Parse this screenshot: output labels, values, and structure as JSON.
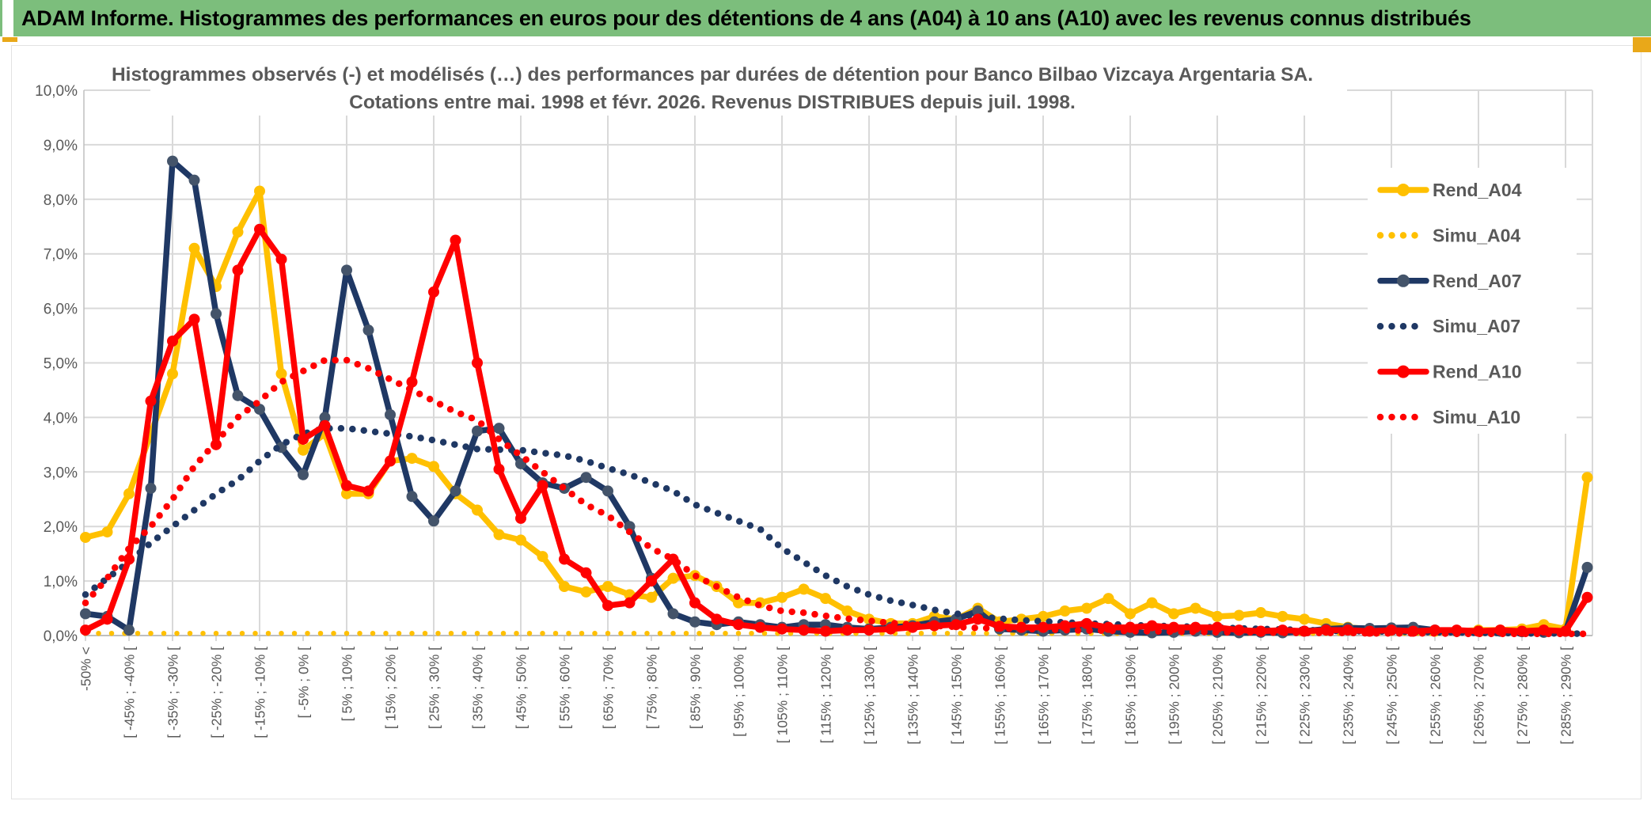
{
  "banner": {
    "title": "ADAM Informe. Histogrammes des performances en euros pour des détentions de 4 ans (A04) à 10 ans (A10) avec les revenus connus distribués",
    "bg_color": "#7CBE7C",
    "accent_color": "#E9A819"
  },
  "chart_data": {
    "type": "line",
    "title": "Histogrammes observés (-) et modélisés (…) des performances par durées de détention pour Banco Bilbao Vizcaya Argentaria SA.",
    "subtitle": "Cotations entre mai. 1998 et févr. 2026. Revenus DISTRIBUES depuis juil. 1998.",
    "ylim": [
      0,
      10
    ],
    "grid": true,
    "legend_position": "right",
    "text_color": "#595959",
    "grid_color": "#D9D9D9",
    "axis_color": "#BFBFBF",
    "y_tick_labels": [
      "0,0%",
      "1,0%",
      "2,0%",
      "3,0%",
      "4,0%",
      "5,0%",
      "6,0%",
      "7,0%",
      "8,0%",
      "9,0%",
      "10,0%"
    ],
    "x_tick_labels": [
      "-50% <",
      "[ -45% ; -40% [",
      "[ -35% ; -30% [",
      "[ -25% ; -20% [",
      "[ -15% ; -10% [",
      "[ -5% ; 0% [",
      "[ 5% ; 10% [",
      "[ 15% ; 20% [",
      "[ 25% ; 30% [",
      "[ 35% ; 40% [",
      "[ 45% ; 50% [",
      "[ 55% ; 60% [",
      "[ 65% ; 70% [",
      "[ 75% ; 80% [",
      "[ 85% ; 90% [",
      "[ 95% ; 100% [",
      "[ 105% ; 110% [",
      "[ 115% ; 120% [",
      "[ 125% ; 130% [",
      "[ 135% ; 140% [",
      "[ 145% ; 150% [",
      "[ 155% ; 160% [",
      "[ 165% ; 170% [",
      "[ 175% ; 180% [",
      "[ 185% ; 190% [",
      "[ 195% ; 200% [",
      "[ 205% ; 210% [",
      "[ 215% ; 220% [",
      "[ 225% ; 230% [",
      "[ 235% ; 240% [",
      "[ 245% ; 250% [",
      "[ 255% ; 260% [",
      "[ 265% ; 270% [",
      "[ 275% ; 280% [",
      "[ 285% ; 290% ["
    ],
    "num_bins": 70,
    "series": [
      {
        "name": "Rend_A04",
        "style": "solid",
        "color": "#FFC000",
        "marker_color": "#FFC000",
        "values": [
          1.8,
          1.9,
          2.6,
          3.7,
          4.8,
          7.1,
          6.4,
          7.4,
          8.15,
          4.8,
          3.4,
          3.7,
          2.6,
          2.6,
          3.2,
          3.25,
          3.1,
          2.6,
          2.3,
          1.85,
          1.75,
          1.45,
          0.9,
          0.8,
          0.9,
          0.75,
          0.7,
          1.05,
          1.1,
          0.9,
          0.6,
          0.6,
          0.7,
          0.85,
          0.68,
          0.45,
          0.3,
          0.22,
          0.22,
          0.35,
          0.3,
          0.5,
          0.25,
          0.3,
          0.35,
          0.45,
          0.5,
          0.68,
          0.4,
          0.6,
          0.4,
          0.5,
          0.35,
          0.37,
          0.42,
          0.35,
          0.3,
          0.22,
          0.15,
          0.12,
          0.1,
          0.1,
          0.08,
          0.08,
          0.1,
          0.1,
          0.12,
          0.2,
          0.12,
          2.9
        ]
      },
      {
        "name": "Simu_A04",
        "style": "dotted",
        "color": "#FFC000",
        "values": [
          0.04,
          0.04,
          0.04,
          0.04,
          0.04,
          0.04,
          0.04,
          0.04,
          0.04,
          0.04,
          0.04,
          0.04,
          0.04,
          0.04,
          0.04,
          0.04,
          0.04,
          0.04,
          0.04,
          0.04,
          0.04,
          0.04,
          0.04,
          0.04,
          0.04,
          0.04,
          0.04,
          0.04,
          0.04,
          0.04,
          0.04,
          0.04,
          0.04,
          0.04,
          0.04,
          0.04,
          0.04,
          0.04,
          0.04,
          0.04,
          0.04,
          0.04,
          0.04,
          0.04,
          0.04,
          0.04,
          0.04,
          0.04,
          0.04,
          0.04,
          0.04,
          0.04,
          0.04,
          0.04,
          0.04,
          0.04,
          0.04,
          0.04,
          0.04,
          0.04,
          0.04,
          0.04,
          0.04,
          0.04,
          0.04,
          0.04,
          0.04,
          0.04,
          0.04,
          0.04
        ]
      },
      {
        "name": "Rend_A07",
        "style": "solid",
        "color": "#1F3864",
        "marker_color": "#44546A",
        "values": [
          0.4,
          0.35,
          0.1,
          2.7,
          8.7,
          8.35,
          5.9,
          4.4,
          4.15,
          3.45,
          2.95,
          4.0,
          6.7,
          5.6,
          4.05,
          2.55,
          2.1,
          2.65,
          3.75,
          3.8,
          3.15,
          2.8,
          2.7,
          2.9,
          2.65,
          2.0,
          1.05,
          0.4,
          0.25,
          0.2,
          0.25,
          0.2,
          0.15,
          0.2,
          0.2,
          0.15,
          0.12,
          0.15,
          0.18,
          0.25,
          0.3,
          0.45,
          0.12,
          0.1,
          0.08,
          0.1,
          0.12,
          0.08,
          0.06,
          0.05,
          0.06,
          0.08,
          0.06,
          0.05,
          0.06,
          0.05,
          0.08,
          0.12,
          0.14,
          0.13,
          0.14,
          0.15,
          0.1,
          0.08,
          0.08,
          0.08,
          0.07,
          0.06,
          0.08,
          1.25
        ]
      },
      {
        "name": "Simu_A07",
        "style": "dotted",
        "color": "#1F3864",
        "values": [
          0.75,
          1.05,
          1.35,
          1.7,
          2.0,
          2.3,
          2.6,
          2.85,
          3.2,
          3.5,
          3.7,
          3.8,
          3.8,
          3.75,
          3.7,
          3.65,
          3.58,
          3.5,
          3.42,
          3.41,
          3.4,
          3.35,
          3.3,
          3.2,
          3.07,
          2.95,
          2.8,
          2.65,
          2.4,
          2.25,
          2.1,
          1.95,
          1.6,
          1.35,
          1.1,
          0.9,
          0.75,
          0.64,
          0.56,
          0.47,
          0.4,
          0.35,
          0.31,
          0.28,
          0.26,
          0.24,
          0.22,
          0.21,
          0.19,
          0.18,
          0.17,
          0.16,
          0.15,
          0.13,
          0.12,
          0.11,
          0.1,
          0.09,
          0.08,
          0.08,
          0.07,
          0.07,
          0.06,
          0.06,
          0.05,
          0.05,
          0.04,
          0.04,
          0.04,
          0.03
        ]
      },
      {
        "name": "Rend_A10",
        "style": "solid",
        "color": "#FF0000",
        "marker_color": "#FF0000",
        "values": [
          0.1,
          0.3,
          1.4,
          4.3,
          5.4,
          5.8,
          3.5,
          6.7,
          7.45,
          6.9,
          3.6,
          3.85,
          2.75,
          2.65,
          3.2,
          4.65,
          6.3,
          7.25,
          5.0,
          3.05,
          2.15,
          2.75,
          1.4,
          1.15,
          0.55,
          0.6,
          1.0,
          1.4,
          0.6,
          0.3,
          0.2,
          0.15,
          0.12,
          0.1,
          0.08,
          0.1,
          0.1,
          0.12,
          0.15,
          0.18,
          0.2,
          0.3,
          0.17,
          0.15,
          0.15,
          0.18,
          0.22,
          0.15,
          0.15,
          0.18,
          0.15,
          0.15,
          0.15,
          0.1,
          0.08,
          0.1,
          0.08,
          0.1,
          0.1,
          0.08,
          0.1,
          0.08,
          0.1,
          0.1,
          0.08,
          0.1,
          0.08,
          0.1,
          0.08,
          0.7
        ]
      },
      {
        "name": "Simu_A10",
        "style": "dotted",
        "color": "#FF0000",
        "values": [
          0.6,
          1.05,
          1.6,
          2.0,
          2.5,
          3.1,
          3.55,
          4.0,
          4.3,
          4.65,
          4.85,
          5.05,
          5.05,
          4.9,
          4.7,
          4.5,
          4.3,
          4.1,
          3.95,
          3.6,
          3.3,
          3.0,
          2.7,
          2.4,
          2.2,
          1.9,
          1.6,
          1.4,
          1.1,
          0.9,
          0.7,
          0.55,
          0.45,
          0.42,
          0.36,
          0.31,
          0.27,
          0.23,
          0.2,
          0.18,
          0.16,
          0.14,
          0.13,
          0.12,
          0.11,
          0.1,
          0.09,
          0.09,
          0.08,
          0.08,
          0.07,
          0.07,
          0.06,
          0.06,
          0.06,
          0.05,
          0.05,
          0.05,
          0.05,
          0.04,
          0.04,
          0.04,
          0.04,
          0.03,
          0.03,
          0.03,
          0.03,
          0.03,
          0.03,
          0.03
        ]
      }
    ]
  }
}
